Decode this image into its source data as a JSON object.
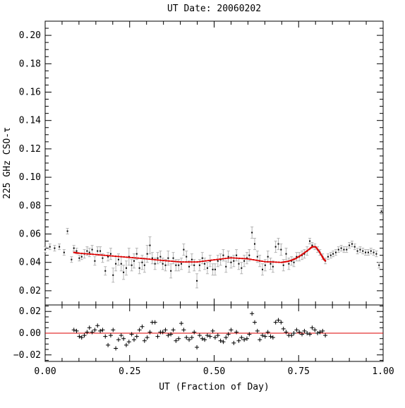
{
  "chart_data": [
    {
      "type": "scatter",
      "title": "UT Date: 20060202",
      "xlabel": "",
      "ylabel": "225 GHz CSO-τ",
      "xlim": [
        0.0,
        1.0
      ],
      "ylim": [
        0.01,
        0.21
      ],
      "yticks": [
        0.02,
        0.04,
        0.06,
        0.08,
        0.1,
        0.12,
        0.14,
        0.16,
        0.18,
        0.2
      ],
      "ytick_labels": [
        "0.02",
        "0.04",
        "0.06",
        "0.08",
        "0.10",
        "0.12",
        "0.14",
        "0.16",
        "0.18",
        "0.20"
      ],
      "grid": false,
      "colors": {
        "data": "#000000",
        "errorbar": "#b4b4b4",
        "fit": "#dd0000"
      },
      "series": [
        {
          "style": "points-errorbars",
          "x": [
            0.0,
            0.014,
            0.028,
            0.042,
            0.056,
            0.066,
            0.078,
            0.085,
            0.093,
            0.101,
            0.108,
            0.116,
            0.124,
            0.131,
            0.139,
            0.147,
            0.155,
            0.163,
            0.17,
            0.178,
            0.186,
            0.194,
            0.201,
            0.209,
            0.217,
            0.225,
            0.232,
            0.24,
            0.248,
            0.256,
            0.263,
            0.271,
            0.279,
            0.287,
            0.294,
            0.302,
            0.31,
            0.317,
            0.325,
            0.333,
            0.341,
            0.348,
            0.356,
            0.364,
            0.372,
            0.379,
            0.387,
            0.395,
            0.403,
            0.41,
            0.418,
            0.426,
            0.434,
            0.441,
            0.449,
            0.457,
            0.465,
            0.472,
            0.48,
            0.488,
            0.496,
            0.503,
            0.511,
            0.519,
            0.527,
            0.535,
            0.542,
            0.55,
            0.558,
            0.566,
            0.573,
            0.581,
            0.589,
            0.597,
            0.604,
            0.612,
            0.62,
            0.628,
            0.635,
            0.643,
            0.651,
            0.659,
            0.667,
            0.674,
            0.682,
            0.69,
            0.698,
            0.705,
            0.713,
            0.721,
            0.729,
            0.736,
            0.744,
            0.752,
            0.76,
            0.767,
            0.775,
            0.783,
            0.79,
            0.798,
            0.806,
            0.813,
            0.821,
            0.829,
            0.837,
            0.845,
            0.852,
            0.86,
            0.868,
            0.876,
            0.884,
            0.892,
            0.9,
            0.908,
            0.916,
            0.924,
            0.932,
            0.94,
            0.948,
            0.956,
            0.964,
            0.972,
            0.98,
            0.988,
            0.995
          ],
          "y": [
            0.049,
            0.051,
            0.05,
            0.051,
            0.047,
            0.062,
            0.042,
            0.05,
            0.048,
            0.043,
            0.044,
            0.046,
            0.048,
            0.047,
            0.049,
            0.041,
            0.048,
            0.048,
            0.043,
            0.034,
            0.044,
            0.046,
            0.031,
            0.039,
            0.042,
            0.039,
            0.033,
            0.036,
            0.044,
            0.038,
            0.041,
            0.046,
            0.036,
            0.04,
            0.038,
            0.046,
            0.052,
            0.043,
            0.039,
            0.043,
            0.044,
            0.039,
            0.038,
            0.043,
            0.034,
            0.043,
            0.038,
            0.038,
            0.039,
            0.049,
            0.044,
            0.037,
            0.042,
            0.038,
            0.027,
            0.038,
            0.043,
            0.039,
            0.036,
            0.041,
            0.035,
            0.035,
            0.041,
            0.042,
            0.045,
            0.037,
            0.044,
            0.04,
            0.041,
            0.045,
            0.039,
            0.036,
            0.041,
            0.043,
            0.045,
            0.061,
            0.053,
            0.044,
            0.041,
            0.035,
            0.038,
            0.044,
            0.039,
            0.037,
            0.051,
            0.053,
            0.049,
            0.038,
            0.046,
            0.039,
            0.041,
            0.04,
            0.044,
            0.044,
            0.045,
            0.046,
            0.048,
            0.055,
            0.052,
            0.051,
            0.049,
            0.047,
            0.044,
            0.041,
            0.044,
            0.045,
            0.046,
            0.047,
            0.049,
            0.05,
            0.049,
            0.049,
            0.052,
            0.053,
            0.051,
            0.048,
            0.049,
            0.048,
            0.047,
            0.047,
            0.048,
            0.047,
            0.046,
            0.038,
            0.076
          ],
          "err": [
            0.002,
            0.002,
            0.002,
            0.002,
            0.002,
            0.002,
            0.002,
            0.002,
            0.002,
            0.002,
            0.002,
            0.003,
            0.003,
            0.003,
            0.003,
            0.003,
            0.003,
            0.003,
            0.003,
            0.003,
            0.003,
            0.004,
            0.005,
            0.005,
            0.004,
            0.005,
            0.005,
            0.005,
            0.006,
            0.004,
            0.005,
            0.004,
            0.004,
            0.005,
            0.005,
            0.006,
            0.006,
            0.004,
            0.004,
            0.004,
            0.004,
            0.004,
            0.004,
            0.005,
            0.005,
            0.004,
            0.004,
            0.004,
            0.004,
            0.004,
            0.004,
            0.004,
            0.004,
            0.004,
            0.005,
            0.004,
            0.004,
            0.004,
            0.004,
            0.004,
            0.004,
            0.004,
            0.004,
            0.004,
            0.004,
            0.004,
            0.004,
            0.004,
            0.004,
            0.004,
            0.004,
            0.004,
            0.004,
            0.004,
            0.004,
            0.004,
            0.004,
            0.004,
            0.004,
            0.004,
            0.004,
            0.004,
            0.004,
            0.004,
            0.004,
            0.004,
            0.004,
            0.004,
            0.004,
            0.004,
            0.003,
            0.003,
            0.003,
            0.003,
            0.003,
            0.003,
            0.003,
            0.002,
            0.002,
            0.002,
            0.002,
            0.002,
            0.002,
            0.002,
            0.002,
            0.002,
            0.002,
            0.002,
            0.002,
            0.002,
            0.002,
            0.002,
            0.002,
            0.002,
            0.002,
            0.002,
            0.002,
            0.002,
            0.002,
            0.002,
            0.002,
            0.002,
            0.002,
            0.002,
            0.002
          ]
        },
        {
          "style": "fit-curve",
          "x": [
            0.085,
            0.1,
            0.15,
            0.2,
            0.25,
            0.3,
            0.35,
            0.4,
            0.45,
            0.5,
            0.55,
            0.6,
            0.65,
            0.7,
            0.72,
            0.74,
            0.76,
            0.78,
            0.79,
            0.8,
            0.81,
            0.82,
            0.825,
            0.83
          ],
          "y": [
            0.047,
            0.0465,
            0.0455,
            0.0445,
            0.0435,
            0.0425,
            0.0413,
            0.0403,
            0.0403,
            0.0418,
            0.0432,
            0.0425,
            0.0405,
            0.04,
            0.0408,
            0.0425,
            0.0455,
            0.049,
            0.051,
            0.051,
            0.048,
            0.044,
            0.042,
            0.041
          ]
        }
      ]
    },
    {
      "type": "scatter",
      "title": "",
      "xlabel": "UT (Fraction of Day)",
      "ylabel": "",
      "xlim": [
        0.0,
        1.0
      ],
      "ylim": [
        -0.026,
        0.026
      ],
      "xticks": [
        0.0,
        0.25,
        0.5,
        0.75,
        1.0
      ],
      "xtick_labels": [
        "0.00",
        "0.25",
        "0.50",
        "0.75",
        "1.00"
      ],
      "yticks": [
        -0.02,
        0.0,
        0.02
      ],
      "ytick_labels": [
        "−0.02",
        "0.00",
        "0.02"
      ],
      "zero_line": true,
      "colors": {
        "data": "#000000",
        "zero_line": "#dd0000"
      },
      "series": [
        {
          "style": "crosses",
          "x": [
            0.085,
            0.093,
            0.101,
            0.108,
            0.116,
            0.124,
            0.131,
            0.139,
            0.147,
            0.155,
            0.163,
            0.17,
            0.178,
            0.186,
            0.194,
            0.201,
            0.209,
            0.217,
            0.225,
            0.232,
            0.24,
            0.248,
            0.256,
            0.263,
            0.271,
            0.279,
            0.287,
            0.294,
            0.302,
            0.31,
            0.317,
            0.325,
            0.333,
            0.341,
            0.348,
            0.356,
            0.364,
            0.372,
            0.379,
            0.387,
            0.395,
            0.403,
            0.41,
            0.418,
            0.426,
            0.434,
            0.441,
            0.449,
            0.457,
            0.465,
            0.472,
            0.48,
            0.488,
            0.496,
            0.503,
            0.511,
            0.519,
            0.527,
            0.535,
            0.542,
            0.55,
            0.558,
            0.566,
            0.573,
            0.581,
            0.589,
            0.597,
            0.604,
            0.612,
            0.62,
            0.628,
            0.635,
            0.643,
            0.651,
            0.659,
            0.667,
            0.674,
            0.682,
            0.69,
            0.698,
            0.705,
            0.713,
            0.721,
            0.729,
            0.736,
            0.744,
            0.752,
            0.76,
            0.767,
            0.775,
            0.783,
            0.79,
            0.798,
            0.806,
            0.813,
            0.821,
            0.829
          ],
          "y": [
            0.003,
            0.002,
            -0.003,
            -0.004,
            -0.002,
            0.001,
            0.005,
            0.001,
            0.003,
            0.007,
            0.002,
            0.003,
            -0.003,
            -0.011,
            -0.002,
            0.003,
            -0.014,
            -0.006,
            -0.002,
            -0.005,
            -0.011,
            -0.008,
            -0.001,
            -0.006,
            -0.003,
            0.003,
            0.006,
            -0.007,
            -0.004,
            0.001,
            0.01,
            0.01,
            -0.003,
            0.001,
            0.001,
            0.003,
            -0.002,
            -0.001,
            0.003,
            -0.007,
            -0.005,
            0.009,
            0.003,
            -0.004,
            -0.006,
            -0.004,
            0.001,
            -0.013,
            -0.002,
            -0.005,
            -0.006,
            -0.002,
            -0.003,
            0.002,
            -0.004,
            -0.002,
            -0.007,
            -0.008,
            -0.004,
            -0.001,
            0.003,
            -0.009,
            0.001,
            -0.007,
            -0.004,
            -0.006,
            -0.005,
            -0.001,
            0.018,
            0.01,
            0.002,
            -0.006,
            -0.002,
            -0.003,
            0.001,
            -0.003,
            -0.004,
            0.01,
            0.012,
            0.01,
            0.004,
            0.001,
            -0.002,
            -0.002,
            0.0,
            0.003,
            0.001,
            -0.001,
            0.002,
            0.0,
            -0.001,
            0.005,
            0.003,
            0.0,
            0.001,
            0.002,
            -0.002
          ]
        }
      ]
    }
  ]
}
